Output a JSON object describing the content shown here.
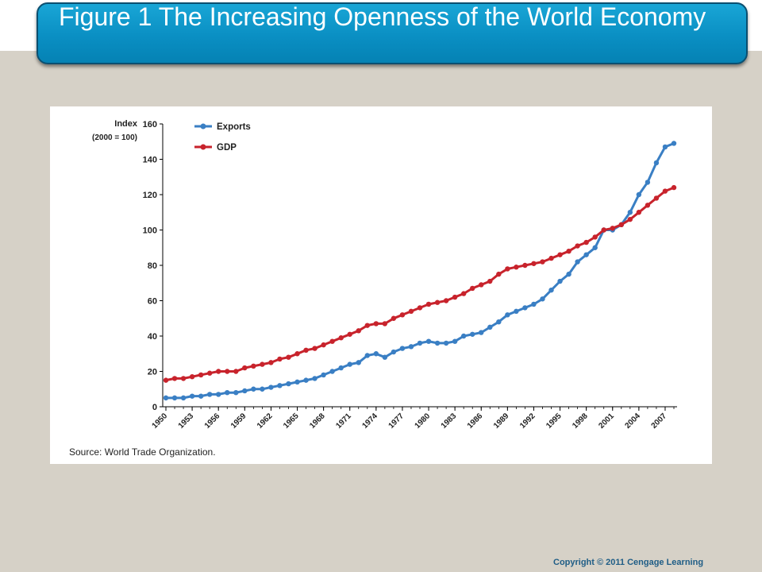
{
  "slide": {
    "title": "Figure 1 The Increasing Openness of the World Economy",
    "copyright": "Copyright  © 2011  Cengage Learning"
  },
  "chart_data": {
    "type": "line",
    "ylabel": "Index",
    "ylabel_sub": "(2000 = 100)",
    "source": "Source: World Trade Organization.",
    "ylim": [
      0,
      160
    ],
    "yticks": [
      0,
      20,
      40,
      60,
      80,
      100,
      120,
      140,
      160
    ],
    "xticks": [
      "1950",
      "1953",
      "1956",
      "1959",
      "1962",
      "1965",
      "1968",
      "1971",
      "1974",
      "1977",
      "1980",
      "1983",
      "1986",
      "1989",
      "1992",
      "1995",
      "1998",
      "2001",
      "2004",
      "2007"
    ],
    "x": [
      1950,
      1951,
      1952,
      1953,
      1954,
      1955,
      1956,
      1957,
      1958,
      1959,
      1960,
      1961,
      1962,
      1963,
      1964,
      1965,
      1966,
      1967,
      1968,
      1969,
      1970,
      1971,
      1972,
      1973,
      1974,
      1975,
      1976,
      1977,
      1978,
      1979,
      1980,
      1981,
      1982,
      1983,
      1984,
      1985,
      1986,
      1987,
      1988,
      1989,
      1990,
      1991,
      1992,
      1993,
      1994,
      1995,
      1996,
      1997,
      1998,
      1999,
      2000,
      2001,
      2002,
      2003,
      2004,
      2005,
      2006,
      2007,
      2008
    ],
    "legend_position": "top-left",
    "grid": false,
    "series": [
      {
        "name": "Exports",
        "color": "#3a7fc4",
        "values": [
          5,
          5,
          5,
          6,
          6,
          7,
          7,
          8,
          8,
          9,
          10,
          10,
          11,
          12,
          13,
          14,
          15,
          16,
          18,
          20,
          22,
          24,
          25,
          29,
          30,
          28,
          31,
          33,
          34,
          36,
          37,
          36,
          36,
          37,
          40,
          41,
          42,
          45,
          48,
          52,
          54,
          56,
          58,
          61,
          66,
          71,
          75,
          82,
          86,
          90,
          100,
          100,
          103,
          110,
          120,
          127,
          138,
          147,
          149
        ]
      },
      {
        "name": "GDP",
        "color": "#c8232c",
        "values": [
          15,
          16,
          16,
          17,
          18,
          19,
          20,
          20,
          20,
          22,
          23,
          24,
          25,
          27,
          28,
          30,
          32,
          33,
          35,
          37,
          39,
          41,
          43,
          46,
          47,
          47,
          50,
          52,
          54,
          56,
          58,
          59,
          60,
          62,
          64,
          67,
          69,
          71,
          75,
          78,
          79,
          80,
          81,
          82,
          84,
          86,
          88,
          91,
          93,
          96,
          100,
          101,
          103,
          106,
          110,
          114,
          118,
          122,
          124
        ]
      }
    ]
  }
}
